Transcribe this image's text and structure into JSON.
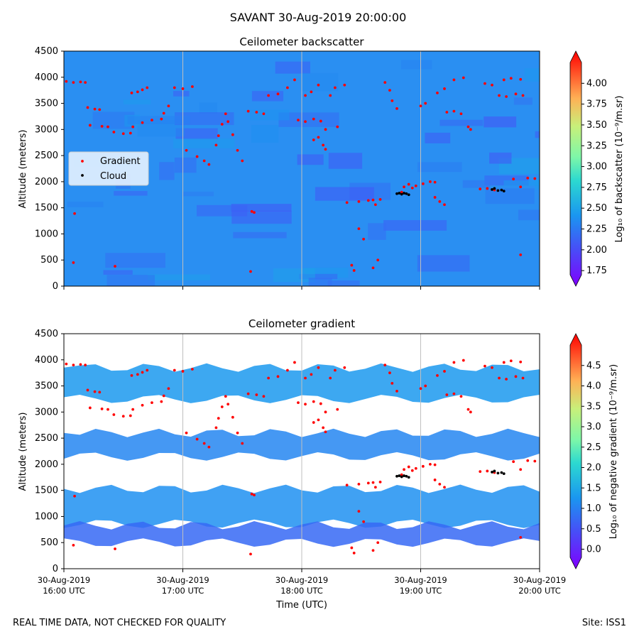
{
  "figure": {
    "suptitle": "SAVANT 30-Aug-2019 20:00:00",
    "footer_left": "REAL TIME DATA, NOT CHECKED FOR QUALITY",
    "footer_right": "Site: ISS1"
  },
  "chart_data": [
    {
      "type": "heatmap",
      "title": "Ceilometer backscatter",
      "ylabel": "Altitude (meters)",
      "xlabel": "",
      "ylim": [
        0,
        4500
      ],
      "yticks": [
        0,
        500,
        1000,
        1500,
        2000,
        2500,
        3000,
        3500,
        4000,
        4500
      ],
      "xticks_hours": [
        16,
        17,
        18,
        19,
        20
      ],
      "colorbar": {
        "label": "Log₁₀ of backscatter (10⁻⁹/m.sr)",
        "range": [
          1.7,
          4.25
        ],
        "ticks": [
          "1.75",
          "2.00",
          "2.25",
          "2.50",
          "2.75",
          "3.00",
          "3.25",
          "3.50",
          "3.75",
          "4.00"
        ],
        "colormap": "rainbow",
        "dominant_value": 2.3
      },
      "legend": {
        "placement": "center-left",
        "entries": [
          {
            "name": "Gradient",
            "color": "#ff0000"
          },
          {
            "name": "Cloud",
            "color": "#000000"
          }
        ]
      }
    },
    {
      "type": "heatmap",
      "title": "Ceilometer gradient",
      "ylabel": "Altitude (meters)",
      "xlabel": "Time (UTC)",
      "ylim": [
        0,
        4500
      ],
      "yticks": [
        0,
        500,
        1000,
        1500,
        2000,
        2500,
        3000,
        3500,
        4000,
        4500
      ],
      "xticks": [
        {
          "hour": 16,
          "line1": "30-Aug-2019",
          "line2": "16:00 UTC"
        },
        {
          "hour": 17,
          "line1": "30-Aug-2019",
          "line2": "17:00 UTC"
        },
        {
          "hour": 18,
          "line1": "30-Aug-2019",
          "line2": "18:00 UTC"
        },
        {
          "hour": 19,
          "line1": "30-Aug-2019",
          "line2": "19:00 UTC"
        },
        {
          "hour": 20,
          "line1": "30-Aug-2019",
          "line2": "20:00 UTC"
        }
      ],
      "colorbar": {
        "label": "Log₁₀ of negative gradient (10⁻⁹/m.sr)",
        "range": [
          -0.2,
          5.0
        ],
        "ticks": [
          "0.0",
          "0.5",
          "1.0",
          "1.5",
          "2.0",
          "2.5",
          "3.0",
          "3.5",
          "4.0",
          "4.5"
        ],
        "colormap": "rainbow"
      },
      "layers": [
        {
          "hours": [
            16.0,
            20.0
          ],
          "altitude": [
            860,
            1530
          ],
          "value": 1.3
        },
        {
          "hours": [
            16.0,
            20.0
          ],
          "altitude": [
            2150,
            2600
          ],
          "value": 1.2
        },
        {
          "hours": [
            16.0,
            20.0
          ],
          "altitude": [
            3250,
            3850
          ],
          "value": 1.4
        },
        {
          "hours": [
            16.0,
            20.0
          ],
          "altitude": [
            500,
            830
          ],
          "value": 0.9
        }
      ]
    }
  ],
  "series": {
    "gradient_points": [
      [
        16.02,
        3920
      ],
      [
        16.08,
        3900
      ],
      [
        16.14,
        3910
      ],
      [
        16.18,
        3900
      ],
      [
        16.2,
        3420
      ],
      [
        16.26,
        3390
      ],
      [
        16.3,
        3380
      ],
      [
        16.22,
        3080
      ],
      [
        16.32,
        3060
      ],
      [
        16.37,
        3050
      ],
      [
        16.42,
        2950
      ],
      [
        16.5,
        2920
      ],
      [
        16.56,
        2930
      ],
      [
        16.58,
        3050
      ],
      [
        16.66,
        3130
      ],
      [
        16.74,
        3180
      ],
      [
        16.82,
        3200
      ],
      [
        16.84,
        3310
      ],
      [
        16.88,
        3450
      ],
      [
        16.57,
        3700
      ],
      [
        16.62,
        3720
      ],
      [
        16.66,
        3760
      ],
      [
        16.7,
        3800
      ],
      [
        16.93,
        3800
      ],
      [
        17.0,
        3780
      ],
      [
        17.08,
        3820
      ],
      [
        17.03,
        2600
      ],
      [
        17.12,
        2480
      ],
      [
        17.18,
        2400
      ],
      [
        17.22,
        2330
      ],
      [
        17.28,
        2700
      ],
      [
        17.3,
        2880
      ],
      [
        17.33,
        3100
      ],
      [
        17.36,
        3300
      ],
      [
        17.38,
        3150
      ],
      [
        17.42,
        2900
      ],
      [
        17.46,
        2600
      ],
      [
        17.5,
        2400
      ],
      [
        17.55,
        3350
      ],
      [
        17.62,
        3330
      ],
      [
        17.68,
        3300
      ],
      [
        17.72,
        3650
      ],
      [
        17.8,
        3680
      ],
      [
        17.88,
        3800
      ],
      [
        17.94,
        3950
      ],
      [
        17.58,
        1430
      ],
      [
        17.6,
        1410
      ],
      [
        17.97,
        3180
      ],
      [
        18.03,
        3150
      ],
      [
        18.03,
        3650
      ],
      [
        18.08,
        3720
      ],
      [
        18.14,
        3850
      ],
      [
        18.1,
        2800
      ],
      [
        18.14,
        2850
      ],
      [
        18.18,
        2700
      ],
      [
        18.2,
        2620
      ],
      [
        18.1,
        3200
      ],
      [
        18.16,
        3160
      ],
      [
        18.24,
        3650
      ],
      [
        18.28,
        3800
      ],
      [
        18.36,
        3850
      ],
      [
        18.2,
        3000
      ],
      [
        18.3,
        3050
      ],
      [
        18.38,
        1600
      ],
      [
        18.48,
        1620
      ],
      [
        18.56,
        1640
      ],
      [
        18.6,
        1650
      ],
      [
        18.66,
        1660
      ],
      [
        18.42,
        400
      ],
      [
        18.44,
        300
      ],
      [
        18.48,
        1100
      ],
      [
        18.52,
        900
      ],
      [
        18.6,
        350
      ],
      [
        18.64,
        500
      ],
      [
        18.62,
        1560
      ],
      [
        18.7,
        3900
      ],
      [
        18.74,
        3750
      ],
      [
        18.76,
        3550
      ],
      [
        18.8,
        3400
      ],
      [
        18.84,
        1800
      ],
      [
        18.86,
        1900
      ],
      [
        18.9,
        1950
      ],
      [
        18.93,
        1880
      ],
      [
        18.96,
        1920
      ],
      [
        19.02,
        1960
      ],
      [
        19.08,
        2000
      ],
      [
        19.12,
        1990
      ],
      [
        19.12,
        1700
      ],
      [
        19.16,
        1620
      ],
      [
        19.2,
        1560
      ],
      [
        19.0,
        3450
      ],
      [
        19.04,
        3500
      ],
      [
        19.14,
        3700
      ],
      [
        19.2,
        3780
      ],
      [
        19.28,
        3950
      ],
      [
        19.36,
        3990
      ],
      [
        19.22,
        3330
      ],
      [
        19.28,
        3350
      ],
      [
        19.34,
        3300
      ],
      [
        19.4,
        3050
      ],
      [
        19.42,
        3000
      ],
      [
        19.54,
        3880
      ],
      [
        19.6,
        3850
      ],
      [
        19.5,
        1860
      ],
      [
        19.56,
        1870
      ],
      [
        19.62,
        1840
      ],
      [
        19.66,
        3650
      ],
      [
        19.72,
        3630
      ],
      [
        19.8,
        3680
      ],
      [
        19.86,
        3650
      ],
      [
        19.7,
        3950
      ],
      [
        19.76,
        3980
      ],
      [
        19.84,
        3960
      ],
      [
        19.78,
        2050
      ],
      [
        19.84,
        1900
      ],
      [
        19.9,
        2070
      ],
      [
        19.96,
        2060
      ],
      [
        19.84,
        600
      ],
      [
        16.09,
        1390
      ],
      [
        16.43,
        380
      ],
      [
        16.08,
        450
      ],
      [
        17.57,
        280
      ]
    ],
    "cloud_points": [
      [
        18.8,
        1770
      ],
      [
        18.82,
        1780
      ],
      [
        18.84,
        1760
      ],
      [
        18.86,
        1780
      ],
      [
        18.88,
        1770
      ],
      [
        18.9,
        1750
      ],
      [
        19.6,
        1850
      ],
      [
        19.62,
        1870
      ],
      [
        19.65,
        1830
      ],
      [
        19.68,
        1840
      ],
      [
        19.7,
        1820
      ]
    ]
  }
}
